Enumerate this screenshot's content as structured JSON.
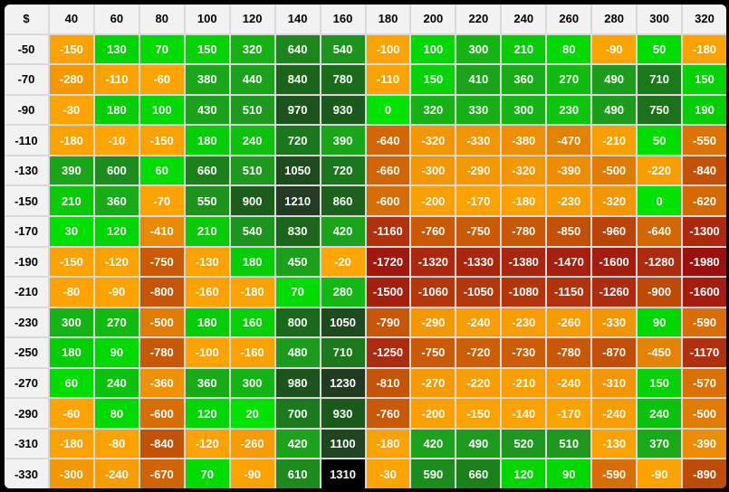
{
  "chart_data": {
    "type": "heatmap",
    "corner_label": "$",
    "columns": [
      "40",
      "60",
      "80",
      "100",
      "120",
      "140",
      "160",
      "180",
      "200",
      "220",
      "240",
      "260",
      "280",
      "300",
      "320"
    ],
    "rows": [
      "-50",
      "-70",
      "-90",
      "-110",
      "-130",
      "-150",
      "-170",
      "-190",
      "-210",
      "-230",
      "-250",
      "-270",
      "-290",
      "-310",
      "-330"
    ],
    "values": [
      [
        -150,
        130,
        70,
        150,
        320,
        640,
        540,
        -100,
        100,
        300,
        210,
        80,
        -90,
        50,
        -180
      ],
      [
        -280,
        -110,
        -60,
        380,
        440,
        840,
        780,
        -110,
        150,
        410,
        360,
        270,
        490,
        710,
        150
      ],
      [
        -30,
        180,
        100,
        430,
        510,
        970,
        930,
        0,
        320,
        330,
        300,
        230,
        490,
        750,
        190
      ],
      [
        -180,
        -10,
        -150,
        180,
        240,
        720,
        390,
        -640,
        -320,
        -330,
        -380,
        -470,
        -210,
        50,
        -550
      ],
      [
        390,
        600,
        60,
        660,
        510,
        1050,
        720,
        -660,
        -300,
        -290,
        -320,
        -390,
        -500,
        -220,
        -840
      ],
      [
        210,
        360,
        -70,
        550,
        900,
        1210,
        860,
        -600,
        -200,
        -170,
        -180,
        -230,
        -320,
        0,
        -620
      ],
      [
        30,
        120,
        -410,
        210,
        540,
        830,
        420,
        -1160,
        -760,
        -750,
        -780,
        -850,
        -960,
        -640,
        -1300
      ],
      [
        -150,
        -120,
        -750,
        -130,
        180,
        450,
        -20,
        -1720,
        -1320,
        -1330,
        -1380,
        -1470,
        -1600,
        -1280,
        -1980
      ],
      [
        -80,
        -90,
        -800,
        -160,
        -180,
        70,
        280,
        -1500,
        -1060,
        -1050,
        -1080,
        -1150,
        -1260,
        -900,
        -1600
      ],
      [
        300,
        270,
        -500,
        180,
        160,
        800,
        1050,
        -790,
        -290,
        -240,
        -230,
        -260,
        -330,
        90,
        -590
      ],
      [
        180,
        90,
        -780,
        -100,
        -160,
        480,
        710,
        -1250,
        -750,
        -720,
        -730,
        -780,
        -870,
        -450,
        -1170
      ],
      [
        60,
        240,
        -360,
        360,
        300,
        980,
        1230,
        -810,
        -270,
        -220,
        -210,
        -240,
        -310,
        150,
        -570
      ],
      [
        -60,
        80,
        -600,
        120,
        20,
        700,
        930,
        -760,
        -200,
        -150,
        -140,
        -170,
        -240,
        240,
        -500
      ],
      [
        -180,
        -80,
        -840,
        -120,
        -260,
        420,
        1100,
        -180,
        420,
        490,
        520,
        510,
        -130,
        370,
        -390
      ],
      [
        -300,
        -240,
        -670,
        70,
        -90,
        610,
        1310,
        -30,
        590,
        660,
        120,
        90,
        -590,
        -90,
        -890
      ]
    ],
    "value_range": [
      -1980,
      1310
    ],
    "color_scale": {
      "stops": [
        [
          -1980,
          "#9a100c"
        ],
        [
          -1700,
          "#a1190e"
        ],
        [
          -1450,
          "#a6210f"
        ],
        [
          -1250,
          "#ad2b0e"
        ],
        [
          -1050,
          "#b4380b"
        ],
        [
          -950,
          "#bb4508"
        ],
        [
          -800,
          "#c65507"
        ],
        [
          -650,
          "#d26505"
        ],
        [
          -500,
          "#e07c04"
        ],
        [
          -350,
          "#f09303"
        ],
        [
          -200,
          "#faa000"
        ],
        [
          -10,
          "#ffa500"
        ],
        [
          0,
          "#00e400"
        ],
        [
          100,
          "#00d800"
        ],
        [
          200,
          "#08cc08"
        ],
        [
          300,
          "#14b414"
        ],
        [
          400,
          "#1aa51a"
        ],
        [
          500,
          "#1d9a1d"
        ],
        [
          600,
          "#1c8c1c"
        ],
        [
          700,
          "#1b7a1b"
        ],
        [
          800,
          "#1b6a1b"
        ],
        [
          900,
          "#1c5d1c"
        ],
        [
          1000,
          "#1d501d"
        ],
        [
          1100,
          "#1f461f"
        ],
        [
          1230,
          "#223922"
        ],
        [
          1310,
          "#000000"
        ]
      ]
    },
    "layout": {
      "grid_line_color": "#d9d9d9",
      "header_bg": "#f2f2f2",
      "header_text_color": "#000000",
      "cell_text_color": "#ffffff",
      "frame_color": "#000000",
      "legend": "none",
      "grid": "on"
    }
  }
}
